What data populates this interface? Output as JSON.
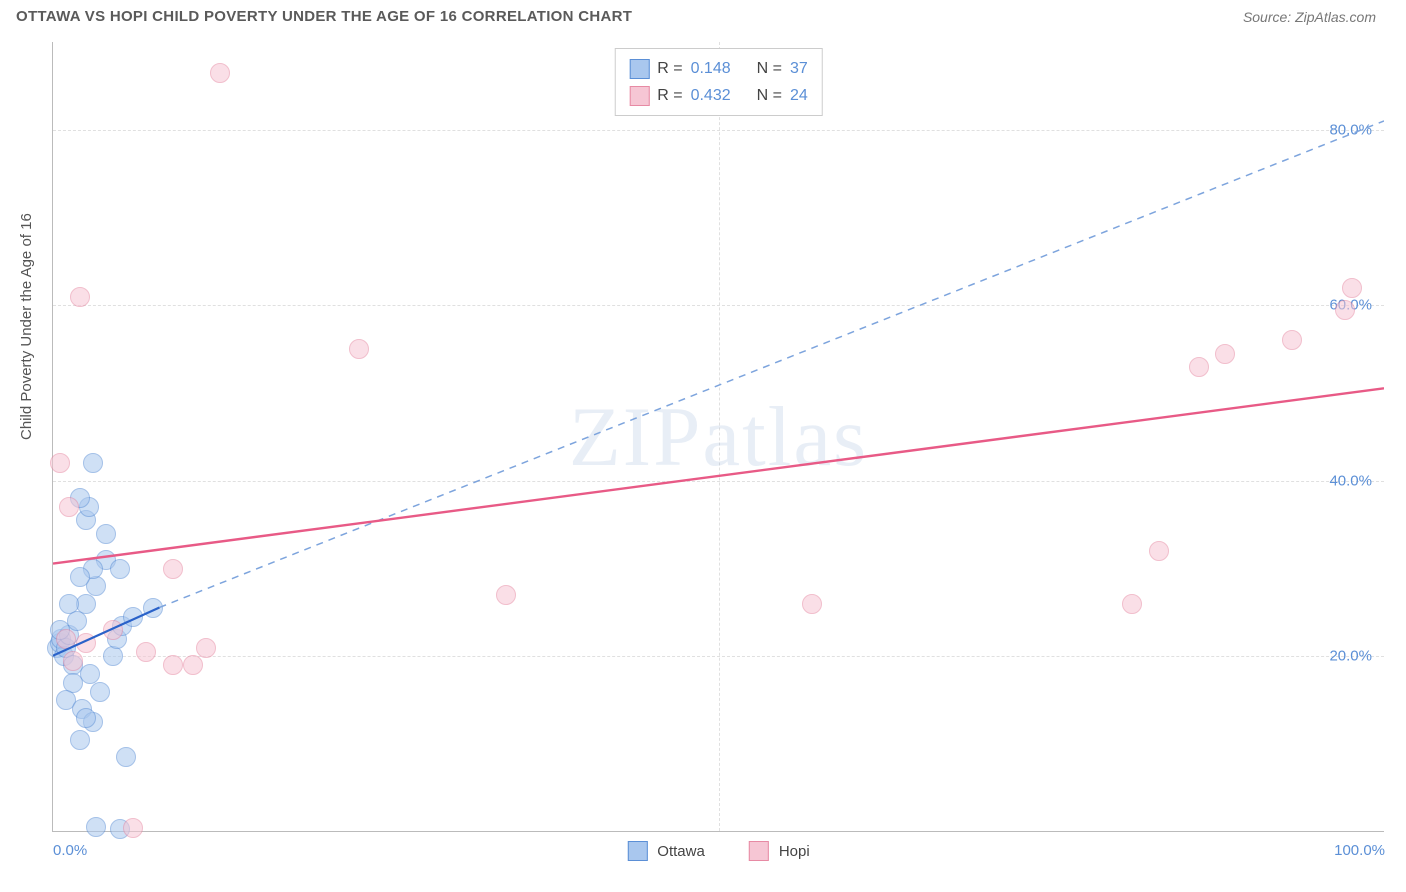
{
  "header": {
    "title": "OTTAWA VS HOPI CHILD POVERTY UNDER THE AGE OF 16 CORRELATION CHART",
    "source": "Source: ZipAtlas.com"
  },
  "watermark": "ZIPatlas",
  "chart": {
    "type": "scatter",
    "ylabel": "Child Poverty Under the Age of 16",
    "xlim": [
      0,
      100
    ],
    "ylim": [
      0,
      90
    ],
    "yticks": [
      {
        "value": 20,
        "label": "20.0%"
      },
      {
        "value": 40,
        "label": "40.0%"
      },
      {
        "value": 60,
        "label": "60.0%"
      },
      {
        "value": 80,
        "label": "80.0%"
      }
    ],
    "xticks": [
      {
        "value": 0,
        "label": "0.0%",
        "align": "left"
      },
      {
        "value": 50,
        "label": "",
        "align": "center"
      },
      {
        "value": 100,
        "label": "100.0%",
        "align": "right"
      }
    ],
    "grid_color": "#e0e0e0",
    "axis_color": "#bbbbbb",
    "tick_label_color": "#5b8fd6",
    "background_color": "#ffffff",
    "marker_radius": 10,
    "marker_opacity": 0.55,
    "series": [
      {
        "name": "Ottawa",
        "fill": "#a9c7ee",
        "stroke": "#5b8fd6",
        "R": "0.148",
        "N": "37",
        "points": [
          [
            0.3,
            21
          ],
          [
            0.5,
            21.5
          ],
          [
            0.6,
            22
          ],
          [
            0.8,
            20
          ],
          [
            1,
            21
          ],
          [
            1.2,
            22.5
          ],
          [
            0.5,
            23
          ],
          [
            1.5,
            19
          ],
          [
            1.5,
            17
          ],
          [
            1,
            15
          ],
          [
            2.2,
            14
          ],
          [
            3.0,
            12.5
          ],
          [
            2.0,
            10.5
          ],
          [
            5.5,
            8.5
          ],
          [
            2.8,
            18
          ],
          [
            3.5,
            16
          ],
          [
            4.5,
            20
          ],
          [
            4.8,
            22
          ],
          [
            5.2,
            23.5
          ],
          [
            6,
            24.5
          ],
          [
            7.5,
            25.5
          ],
          [
            3.2,
            28
          ],
          [
            4,
            31
          ],
          [
            2.5,
            35.5
          ],
          [
            2.7,
            37
          ],
          [
            2,
            38
          ],
          [
            3,
            42
          ],
          [
            2.5,
            26.0
          ],
          [
            1.2,
            26
          ],
          [
            4.0,
            34
          ],
          [
            3.0,
            30
          ],
          [
            2.0,
            29
          ],
          [
            1.8,
            24
          ],
          [
            5.0,
            30
          ],
          [
            3.2,
            0.6
          ],
          [
            5.0,
            0.3
          ],
          [
            2.5,
            13
          ]
        ],
        "trend": {
          "x1": 0,
          "y1": 20.0,
          "x2": 8,
          "y2": 25.5,
          "extend_x2": 100,
          "extend_y2": 81,
          "solid_color": "#2a62c9",
          "dash_color": "#7da4dd",
          "width": 2.2
        }
      },
      {
        "name": "Hopi",
        "fill": "#f6c6d4",
        "stroke": "#e78aa4",
        "R": "0.432",
        "N": "24",
        "points": [
          [
            1,
            22
          ],
          [
            1.5,
            19.5
          ],
          [
            2.5,
            21.5
          ],
          [
            4.5,
            23
          ],
          [
            1.2,
            37
          ],
          [
            9,
            19
          ],
          [
            9,
            30
          ],
          [
            0.5,
            42
          ],
          [
            2,
            61
          ],
          [
            12.5,
            86.5
          ],
          [
            23,
            55
          ],
          [
            11.5,
            21
          ],
          [
            34,
            27
          ],
          [
            57,
            26
          ],
          [
            81,
            26
          ],
          [
            83,
            32
          ],
          [
            86,
            53
          ],
          [
            88,
            54.5
          ],
          [
            93,
            56
          ],
          [
            97,
            59.5
          ],
          [
            97.5,
            62
          ],
          [
            10.5,
            19
          ],
          [
            7,
            20.5
          ],
          [
            6,
            0.5
          ]
        ],
        "trend": {
          "x1": 0,
          "y1": 30.5,
          "x2": 100,
          "y2": 50.5,
          "solid_color": "#e85a86",
          "width": 2.4
        }
      }
    ],
    "bottom_legend": [
      {
        "label": "Ottawa",
        "fill": "#a9c7ee",
        "stroke": "#5b8fd6"
      },
      {
        "label": "Hopi",
        "fill": "#f6c6d4",
        "stroke": "#e78aa4"
      }
    ]
  }
}
